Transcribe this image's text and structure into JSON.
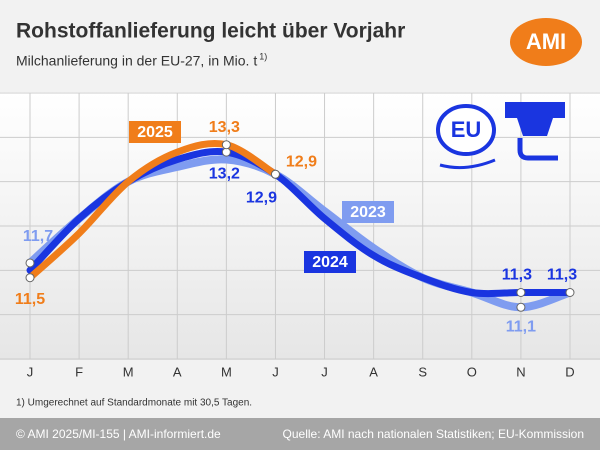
{
  "chart_data": {
    "type": "line",
    "title": "Rohstoffanlieferung leicht über Vorjahr",
    "subtitle": "Milchanlieferung in der EU-27, in Mio. t",
    "subtitle_note": "1)",
    "logo": "AMI",
    "badge": "EU",
    "footnote": "1) Umgerechnet auf Standardmonate mit 30,5 Tagen.",
    "footer_left": "© AMI 2025/MI-155 | AMI-informiert.de",
    "footer_right": "Quelle: AMI nach nationalen Statistiken; EU-Kommission",
    "categories": [
      "J",
      "F",
      "M",
      "A",
      "M",
      "J",
      "J",
      "A",
      "S",
      "O",
      "N",
      "D"
    ],
    "ylim": [
      10.4,
      14.0
    ],
    "series": [
      {
        "name": "2023",
        "color": "#7f9cf0",
        "values": [
          11.7,
          12.3,
          12.8,
          13.0,
          13.1,
          12.9,
          12.4,
          11.9,
          11.5,
          11.3,
          11.1,
          11.3
        ],
        "value_labels": [
          "11,7",
          null,
          null,
          null,
          null,
          null,
          null,
          null,
          null,
          null,
          "11,1",
          null
        ]
      },
      {
        "name": "2024",
        "color": "#1a35e0",
        "values": [
          11.6,
          12.3,
          12.8,
          13.1,
          13.2,
          12.9,
          12.3,
          11.8,
          11.5,
          11.3,
          11.3,
          11.3
        ],
        "value_labels": [
          null,
          null,
          null,
          null,
          "13,2",
          "12,9",
          null,
          null,
          null,
          null,
          "11,3",
          "11,3"
        ]
      },
      {
        "name": "2025",
        "color": "#f07d1a",
        "values": [
          11.5,
          12.1,
          12.8,
          13.2,
          13.3,
          12.9,
          null,
          null,
          null,
          null,
          null,
          null
        ],
        "value_labels": [
          "11,5",
          null,
          null,
          null,
          "13,3",
          "12,9",
          null,
          null,
          null,
          null,
          null,
          null
        ]
      }
    ]
  }
}
